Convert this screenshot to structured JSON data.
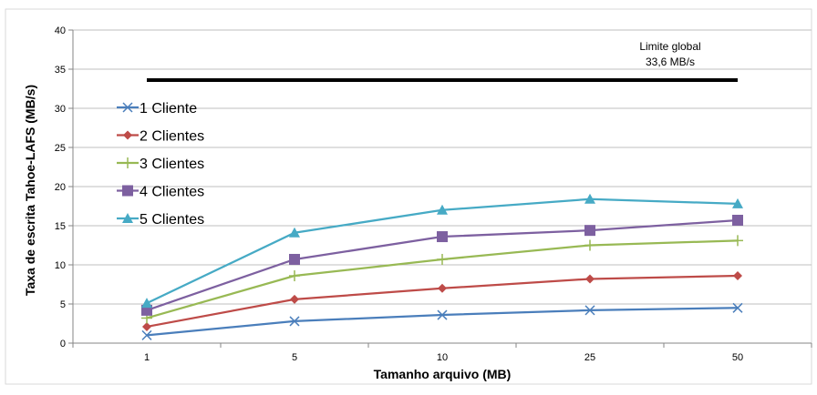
{
  "chart_data": {
    "type": "line",
    "xlabel": "Tamanho arquivo (MB)",
    "ylabel": "Taxa de escrita Tahoe-LAFS (MB/s)",
    "categories": [
      "1",
      "5",
      "10",
      "25",
      "50"
    ],
    "ylim": [
      0,
      40
    ],
    "yticks": [
      0,
      5,
      10,
      15,
      20,
      25,
      30,
      35,
      40
    ],
    "grid": "horizontal",
    "legend_position": "left",
    "series": [
      {
        "name": "1 Cliente",
        "values": [
          1.0,
          2.8,
          3.6,
          4.2,
          4.5
        ],
        "color": "#4a7ebb",
        "marker": "x"
      },
      {
        "name": "2 Clientes",
        "values": [
          2.1,
          5.6,
          7.0,
          8.2,
          8.6
        ],
        "color": "#be4b48",
        "marker": "diamond"
      },
      {
        "name": "3 Clientes",
        "values": [
          3.2,
          8.6,
          10.7,
          12.5,
          13.1
        ],
        "color": "#98b954",
        "marker": "plus"
      },
      {
        "name": "4 Clientes",
        "values": [
          4.2,
          10.7,
          13.6,
          14.4,
          15.7
        ],
        "color": "#7d60a0",
        "marker": "square"
      },
      {
        "name": "5 Clientes",
        "values": [
          5.1,
          14.1,
          17.0,
          18.4,
          17.8
        ],
        "color": "#46aac5",
        "marker": "triangle"
      }
    ],
    "reference_line": {
      "value": 33.6,
      "color": "#000000",
      "label_line1": "Limite global",
      "label_line2": "33,6 MB/s"
    }
  }
}
